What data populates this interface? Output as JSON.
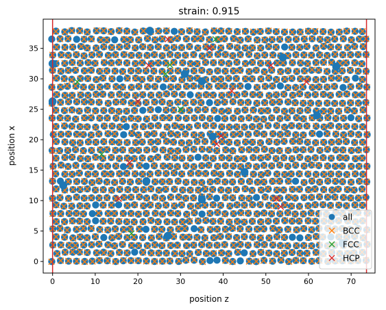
{
  "chart_data": {
    "type": "scatter",
    "title": "strain: 0.915",
    "xlabel": "position z",
    "ylabel": "position x",
    "xlim": [
      -2.2,
      75.6
    ],
    "ylim": [
      -1.9,
      39.8
    ],
    "xticks": [
      0,
      10,
      20,
      30,
      40,
      50,
      60,
      70
    ],
    "yticks": [
      0,
      5,
      10,
      15,
      20,
      25,
      30,
      35
    ],
    "grid": false,
    "legend_position": "lower right",
    "vertical_lines": [
      {
        "x": 0.0,
        "color": "#d62728"
      },
      {
        "x": 73.6,
        "color": "#d62728"
      }
    ],
    "lattice": {
      "x_start": 0.0,
      "x_end": 73.6,
      "x_step": 1.84,
      "y_start": 0.1,
      "y_end": 38.2,
      "y_step": 1.3
    },
    "series": [
      {
        "name": "all",
        "marker": "circle",
        "color": "#1f77b4"
      },
      {
        "name": "BCC",
        "marker": "x",
        "color": "#ff7f0e"
      },
      {
        "name": "FCC",
        "marker": "x",
        "color": "#2ca02c",
        "points": [
          [
            5.8,
            29.5
          ],
          [
            11.5,
            17.6
          ],
          [
            18.5,
            4.6
          ],
          [
            26.5,
            30.8
          ],
          [
            27.5,
            32.3
          ],
          [
            30.0,
            25.0
          ],
          [
            38.2,
            36.5
          ]
        ]
      },
      {
        "name": "HCP",
        "marker": "x",
        "color": "#d62728",
        "points": [
          [
            15.5,
            10.3
          ],
          [
            18.0,
            16.2
          ],
          [
            20.0,
            26.3
          ],
          [
            22.5,
            32.2
          ],
          [
            27.0,
            36.5
          ],
          [
            36.8,
            35.0
          ],
          [
            38.5,
            19.3
          ],
          [
            39.5,
            20.6
          ],
          [
            42.0,
            28.0
          ],
          [
            51.2,
            32.2
          ],
          [
            52.5,
            10.3
          ],
          [
            53.5,
            9.0
          ],
          [
            59.5,
            29.5
          ]
        ]
      }
    ],
    "extra_all_points": [
      [
        0.0,
        32.5
      ],
      [
        0.0,
        26.3
      ],
      [
        22.8,
        37.9
      ],
      [
        31.0,
        30.8
      ],
      [
        35.0,
        29.6
      ],
      [
        35.0,
        10.2
      ],
      [
        22.0,
        13.2
      ],
      [
        37.5,
        20.5
      ],
      [
        45.0,
        14.7
      ],
      [
        54.0,
        33.5
      ],
      [
        62.0,
        24.0
      ],
      [
        66.5,
        32.0
      ],
      [
        68.0,
        3.0
      ],
      [
        27.0,
        4.2
      ],
      [
        2.5,
        12.5
      ]
    ]
  }
}
